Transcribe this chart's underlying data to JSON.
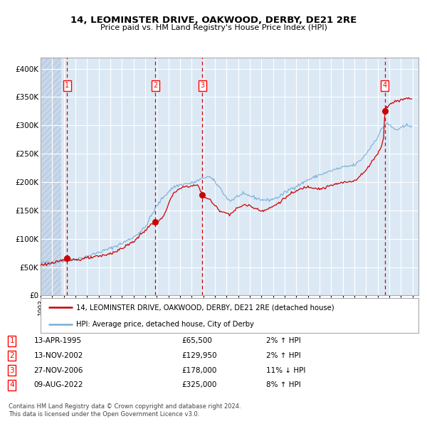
{
  "title": "14, LEOMINSTER DRIVE, OAKWOOD, DERBY, DE21 2RE",
  "subtitle": "Price paid vs. HM Land Registry's House Price Index (HPI)",
  "legend_label_red": "14, LEOMINSTER DRIVE, OAKWOOD, DERBY, DE21 2RE (detached house)",
  "legend_label_blue": "HPI: Average price, detached house, City of Derby",
  "footer1": "Contains HM Land Registry data © Crown copyright and database right 2024.",
  "footer2": "This data is licensed under the Open Government Licence v3.0.",
  "transactions": [
    {
      "num": 1,
      "date": "13-APR-1995",
      "price": 65500,
      "pct": "2%",
      "dir": "↑",
      "year_x": 1995.28
    },
    {
      "num": 2,
      "date": "13-NOV-2002",
      "price": 129950,
      "pct": "2%",
      "dir": "↑",
      "year_x": 2002.87
    },
    {
      "num": 3,
      "date": "27-NOV-2006",
      "price": 178000,
      "pct": "11%",
      "dir": "↓",
      "year_x": 2006.91
    },
    {
      "num": 4,
      "date": "09-AUG-2022",
      "price": 325000,
      "pct": "8%",
      "dir": "↑",
      "year_x": 2022.61
    }
  ],
  "ylim": [
    0,
    420000
  ],
  "xlim_start": 1993.0,
  "xlim_end": 2025.5,
  "background_color": "#dce9f5",
  "hatch_color": "#c8d8ea",
  "grid_color": "#ffffff",
  "red_line_color": "#cc0000",
  "blue_line_color": "#7aadd4",
  "marker_color": "#cc0000",
  "dashed_line_color": "#cc0000",
  "yticks": [
    0,
    50000,
    100000,
    150000,
    200000,
    250000,
    300000,
    350000,
    400000
  ],
  "ytick_labels": [
    "£0",
    "£50K",
    "£100K",
    "£150K",
    "£200K",
    "£250K",
    "£300K",
    "£350K",
    "£400K"
  ],
  "xticks": [
    1993,
    1994,
    1995,
    1996,
    1997,
    1998,
    1999,
    2000,
    2001,
    2002,
    2003,
    2004,
    2005,
    2006,
    2007,
    2008,
    2009,
    2010,
    2011,
    2012,
    2013,
    2014,
    2015,
    2016,
    2017,
    2018,
    2019,
    2020,
    2021,
    2022,
    2023,
    2024,
    2025
  ]
}
